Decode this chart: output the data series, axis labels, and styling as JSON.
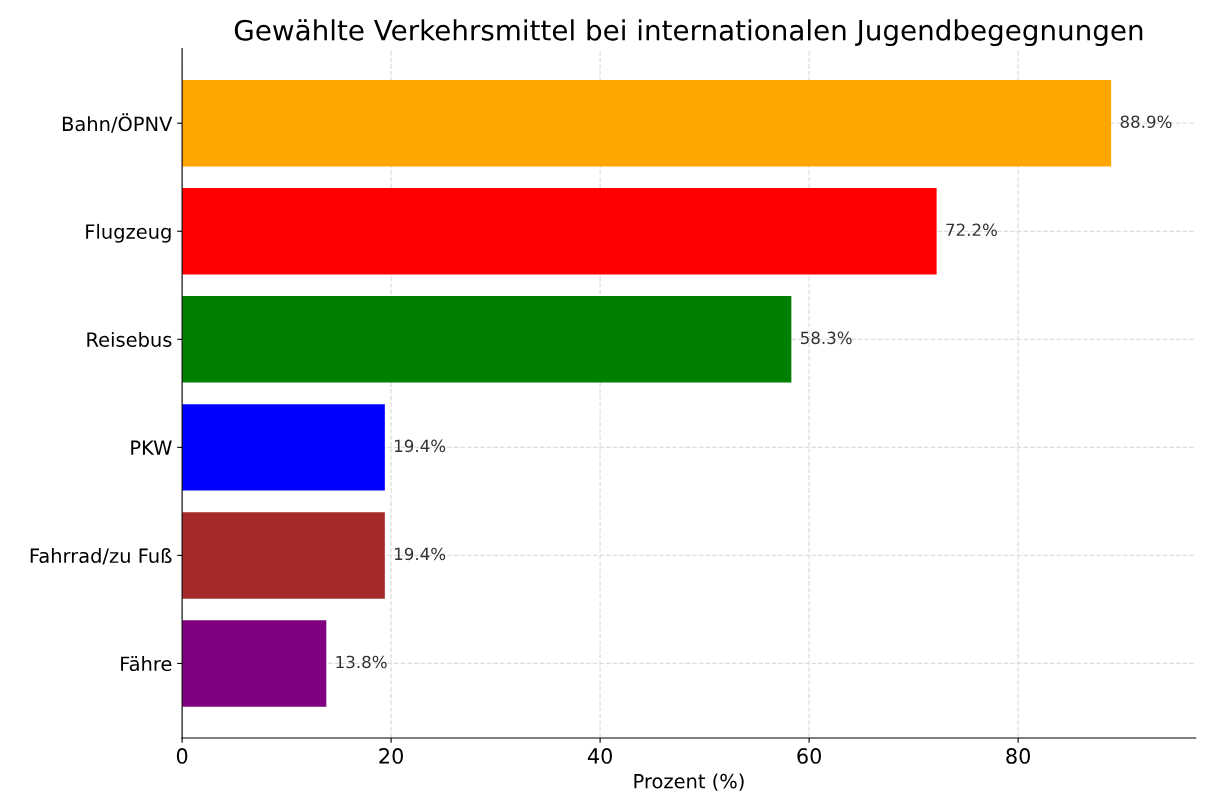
{
  "chart_data": {
    "type": "bar",
    "orientation": "horizontal",
    "title": "Gewählte Verkehrsmittel bei internationalen Jugendbegegnungen",
    "xlabel": "Prozent (%)",
    "categories": [
      "Bahn/ÖPNV",
      "Flugzeug",
      "Reisebus",
      "PKW",
      "Fahrrad/zu Fuß",
      "Fähre"
    ],
    "values": [
      88.9,
      72.2,
      58.3,
      19.4,
      19.4,
      13.8
    ],
    "colors": [
      "#ffa500",
      "#ff0000",
      "#008000",
      "#0000ff",
      "#a52a2a",
      "#800080"
    ],
    "value_labels": [
      "88.9%",
      "72.2%",
      "58.3%",
      "19.4%",
      "19.4%",
      "13.8%"
    ],
    "xlim": [
      0,
      97
    ],
    "xticks": [
      0,
      20,
      40,
      60,
      80
    ],
    "grid": true
  }
}
